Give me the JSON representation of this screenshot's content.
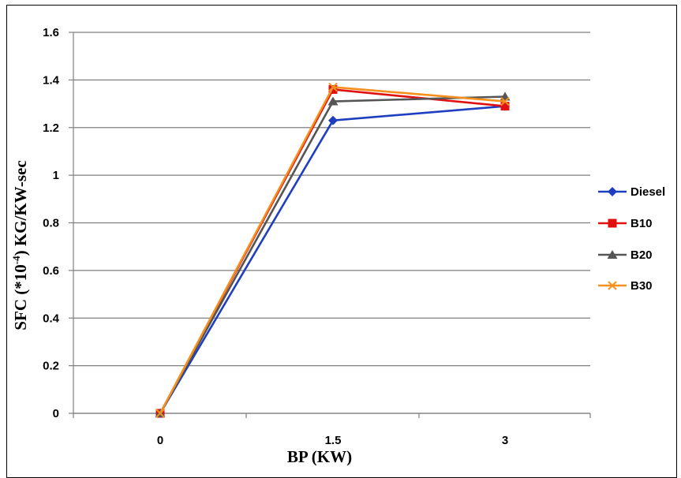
{
  "chart_data": {
    "type": "line",
    "categories": [
      "0",
      "1.5",
      "3"
    ],
    "x": [
      0,
      1.5,
      3
    ],
    "ylim": [
      0,
      1.6
    ],
    "yticks": [
      "0",
      "0.2",
      "0.4",
      "0.6",
      "0.8",
      "1",
      "1.2",
      "1.4",
      "1.6"
    ],
    "ytick_values": [
      0,
      0.2,
      0.4,
      0.6,
      0.8,
      1.0,
      1.2,
      1.4,
      1.6
    ],
    "xlabel": "BP (KW)",
    "ylabel_prefix": "SFC (*10",
    "ylabel_exp": "-4",
    "ylabel_suffix": ") KG/KW-sec",
    "grid": true,
    "legend_position": "right",
    "series": [
      {
        "name": "Diesel",
        "values": [
          0,
          1.23,
          1.29
        ],
        "color": "#1f3fbf",
        "marker": "diamond"
      },
      {
        "name": "B10",
        "values": [
          0,
          1.36,
          1.29
        ],
        "color": "#e01010",
        "marker": "square"
      },
      {
        "name": "B20",
        "values": [
          0,
          1.31,
          1.33
        ],
        "color": "#555555",
        "marker": "triangle"
      },
      {
        "name": "B30",
        "values": [
          0,
          1.37,
          1.31
        ],
        "color": "#f5901e",
        "marker": "x"
      }
    ]
  }
}
